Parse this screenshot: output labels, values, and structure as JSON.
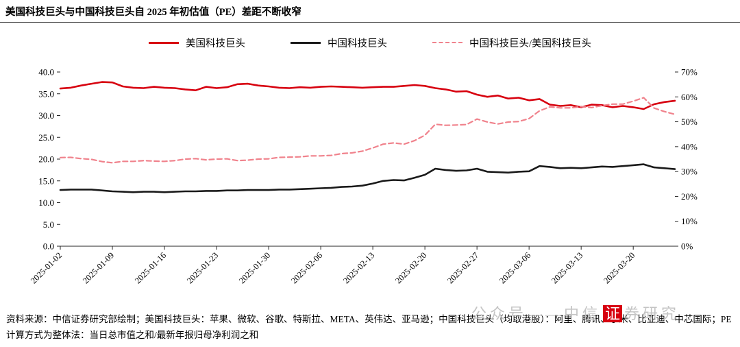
{
  "page": {
    "title": "美国科技巨头与中国科技巨头自 2025 年初估值（PE）差距不断收窄",
    "source_note": "资料来源：中信证券研究部绘制；美国科技巨头：苹果、微软、谷歌、特斯拉、META、英伟达、亚马逊；中国科技巨头（均取港股）：阿里、腾讯、小米、比亚迪、中芯国际；PE 计算方式为整体法：当日总市值之和/最新年报归母净利润之和",
    "watermark": {
      "prefix": "公众号——中信",
      "highlight": "证",
      "suffix": "券研究"
    }
  },
  "chart_data": {
    "type": "line",
    "title": "美国科技巨头与中国科技巨头自 2025 年初估值（PE）差距不断收窄",
    "grid": false,
    "legend_position": "top",
    "x": [
      "2025-01-02",
      "2025-01-03",
      "2025-01-06",
      "2025-01-07",
      "2025-01-08",
      "2025-01-09",
      "2025-01-10",
      "2025-01-13",
      "2025-01-14",
      "2025-01-15",
      "2025-01-16",
      "2025-01-17",
      "2025-01-20",
      "2025-01-21",
      "2025-01-22",
      "2025-01-23",
      "2025-01-24",
      "2025-01-27",
      "2025-01-28",
      "2025-01-29",
      "2025-01-30",
      "2025-01-31",
      "2025-02-03",
      "2025-02-04",
      "2025-02-05",
      "2025-02-06",
      "2025-02-07",
      "2025-02-10",
      "2025-02-11",
      "2025-02-12",
      "2025-02-13",
      "2025-02-14",
      "2025-02-17",
      "2025-02-18",
      "2025-02-19",
      "2025-02-20",
      "2025-02-21",
      "2025-02-24",
      "2025-02-25",
      "2025-02-26",
      "2025-02-27",
      "2025-02-28",
      "2025-03-03",
      "2025-03-04",
      "2025-03-05",
      "2025-03-06",
      "2025-03-07",
      "2025-03-10",
      "2025-03-11",
      "2025-03-12",
      "2025-03-13",
      "2025-03-14",
      "2025-03-17",
      "2025-03-18",
      "2025-03-19",
      "2025-03-20",
      "2025-03-21",
      "2025-03-24",
      "2025-03-25",
      "2025-03-26"
    ],
    "x_tick_labels": [
      "2025-01-02",
      "2025-01-09",
      "2025-01-16",
      "2025-01-23",
      "2025-01-30",
      "2025-02-06",
      "2025-02-13",
      "2025-02-20",
      "2025-02-27",
      "2025-03-06",
      "2025-03-13",
      "2025-03-20"
    ],
    "left_axis": {
      "min": 0,
      "max": 40,
      "step": 5,
      "tick_labels": [
        "40.0",
        "35.0",
        "30.0",
        "25.0",
        "20.0",
        "15.0",
        "10.0",
        "5.0",
        "0.0"
      ]
    },
    "right_axis": {
      "min": 0,
      "max": 70,
      "step": 10,
      "tick_labels": [
        "70%",
        "60%",
        "50%",
        "40%",
        "30%",
        "20%",
        "10%",
        "0%"
      ]
    },
    "series": [
      {
        "id": "us-tech-pe-line",
        "name": "美国科技巨头",
        "axis": "left",
        "color": "#d7000f",
        "style": "solid",
        "values": [
          36.2,
          36.4,
          36.9,
          37.3,
          37.7,
          37.6,
          36.7,
          36.4,
          36.3,
          36.6,
          36.4,
          36.3,
          36.0,
          35.8,
          36.6,
          36.3,
          36.5,
          37.2,
          37.3,
          36.9,
          36.7,
          36.4,
          36.3,
          36.5,
          36.4,
          36.6,
          36.7,
          36.6,
          36.5,
          36.4,
          36.5,
          36.6,
          36.6,
          36.8,
          37.0,
          36.8,
          36.3,
          36.0,
          35.5,
          35.6,
          34.8,
          34.3,
          34.6,
          33.9,
          34.1,
          33.5,
          33.8,
          32.5,
          32.2,
          32.4,
          31.9,
          32.5,
          32.4,
          31.9,
          32.2,
          31.9,
          31.5,
          32.6,
          33.1,
          33.4
        ]
      },
      {
        "id": "china-tech-pe-line",
        "name": "中国科技巨头",
        "axis": "left",
        "color": "#1a1a1a",
        "style": "solid",
        "values": [
          12.9,
          13.0,
          13.0,
          13.0,
          12.8,
          12.6,
          12.5,
          12.4,
          12.5,
          12.5,
          12.4,
          12.5,
          12.6,
          12.6,
          12.7,
          12.7,
          12.8,
          12.8,
          12.9,
          12.9,
          12.9,
          13.0,
          13.0,
          13.1,
          13.2,
          13.3,
          13.4,
          13.6,
          13.7,
          13.9,
          14.4,
          15.0,
          15.2,
          15.1,
          15.7,
          16.4,
          17.8,
          17.5,
          17.3,
          17.4,
          17.8,
          17.1,
          17.0,
          16.9,
          17.1,
          17.2,
          18.4,
          18.2,
          17.9,
          18.0,
          17.9,
          18.1,
          18.3,
          18.2,
          18.4,
          18.6,
          18.8,
          18.1,
          17.9,
          17.7
        ]
      },
      {
        "id": "cn-us-ratio-line",
        "name": "中国科技巨头/美国科技巨头",
        "axis": "right",
        "unit": "%",
        "color": "#f0828c",
        "style": "dashed",
        "values": [
          35.6,
          35.7,
          35.2,
          34.9,
          34.0,
          33.5,
          34.1,
          34.1,
          34.4,
          34.2,
          34.1,
          34.4,
          35.0,
          35.2,
          34.7,
          35.0,
          35.1,
          34.4,
          34.6,
          35.0,
          35.1,
          35.7,
          35.8,
          35.9,
          36.3,
          36.3,
          36.5,
          37.2,
          37.5,
          38.2,
          39.5,
          41.0,
          41.5,
          41.0,
          42.4,
          44.6,
          49.0,
          48.6,
          48.7,
          48.9,
          51.1,
          49.9,
          49.1,
          49.9,
          50.1,
          51.3,
          54.4,
          56.0,
          55.6,
          55.6,
          56.1,
          55.7,
          56.5,
          57.1,
          57.1,
          58.3,
          59.7,
          55.5,
          54.1,
          53.0
        ]
      }
    ]
  }
}
